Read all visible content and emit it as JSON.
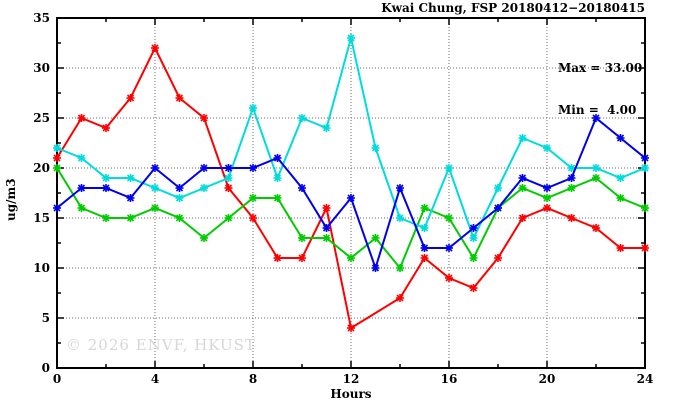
{
  "header": {
    "title": "Kwai Chung, FSP 20180412−20180415"
  },
  "stats_box": {
    "max_label": "Max = 33.00",
    "min_label": "Min =  4.00"
  },
  "watermark": "© 2026 ENVF, HKUST",
  "colors": {
    "background": "#ffffff",
    "axis": "#000000",
    "grid": "#6e6e6e",
    "tick_text": "#000000",
    "watermark": "#d7d7d7"
  },
  "chart_data": {
    "type": "line",
    "title": "Kwai Chung, FSP 20180412−20180415",
    "xlabel": "Hours",
    "ylabel": "ug/m3",
    "xlim": [
      0,
      24
    ],
    "ylim": [
      0,
      35
    ],
    "grid": true,
    "marker": "asterisk",
    "xtick_values": [
      0,
      4,
      8,
      12,
      16,
      20,
      24
    ],
    "xtick_labels": [
      "0",
      "4",
      "8",
      "12",
      "16",
      "20",
      "24"
    ],
    "xtick_minor": [
      2,
      6,
      10,
      14,
      18,
      22
    ],
    "x_gridlines": [
      4,
      8,
      12,
      16,
      20
    ],
    "ytick_values": [
      0,
      5,
      10,
      15,
      20,
      25,
      30,
      35
    ],
    "ytick_labels": [
      "0",
      "5",
      "10",
      "15",
      "20",
      "25",
      "30",
      "35"
    ],
    "ytick_minor": [
      2.5,
      7.5,
      12.5,
      17.5,
      22.5,
      27.5,
      32.5
    ],
    "y_gridlines": [
      5,
      10,
      15,
      20,
      25,
      30
    ],
    "x": [
      0,
      1,
      2,
      3,
      4,
      5,
      6,
      7,
      8,
      9,
      10,
      11,
      12,
      13,
      14,
      15,
      16,
      17,
      18,
      19,
      20,
      21,
      22,
      23,
      24
    ],
    "series": [
      {
        "name": "red-series",
        "color": "#ff0000",
        "values": [
          21,
          25,
          24,
          27,
          32,
          27,
          25,
          18,
          15,
          11,
          11,
          16,
          4,
          null,
          7,
          11,
          9,
          8,
          11,
          15,
          16,
          15,
          14,
          12,
          12
        ]
      },
      {
        "name": "green-series",
        "color": "#00cc00",
        "values": [
          20,
          16,
          15,
          15,
          16,
          15,
          13,
          15,
          17,
          17,
          13,
          13,
          11,
          13,
          10,
          16,
          15,
          11,
          16,
          18,
          17,
          18,
          19,
          17,
          16
        ]
      },
      {
        "name": "cyan-series",
        "color": "#00dcdc",
        "values": [
          22,
          21,
          19,
          19,
          18,
          17,
          18,
          19,
          26,
          19,
          25,
          24,
          33,
          22,
          15,
          14,
          20,
          13,
          18,
          23,
          22,
          20,
          20,
          19,
          20
        ]
      },
      {
        "name": "blue-series",
        "color": "#0000ee",
        "values": [
          16,
          18,
          18,
          17,
          20,
          18,
          20,
          20,
          20,
          21,
          18,
          14,
          17,
          10,
          18,
          12,
          12,
          14,
          16,
          19,
          18,
          19,
          25,
          23,
          21
        ]
      }
    ],
    "annotations": {
      "max": "33.00",
      "min": "4.00"
    }
  }
}
